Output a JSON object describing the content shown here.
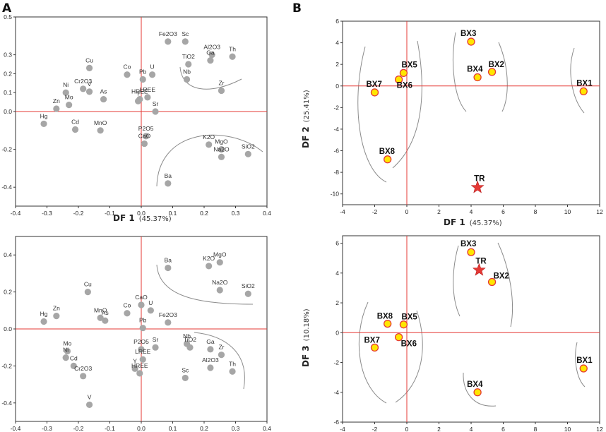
{
  "panels": {
    "A": "A",
    "B": "B"
  },
  "chart_data": [
    {
      "id": "A-top",
      "type": "scatter",
      "xlabel": "DF 1",
      "xlabel_pct": "(45.37%)",
      "ylabel": "",
      "xlim": [
        -0.4,
        0.4
      ],
      "ylim": [
        -0.5,
        0.5
      ],
      "xticks": [
        "-0.4",
        "-0.3",
        "-0.2",
        "-0.1",
        "0.0",
        "0.1",
        "0.2",
        "0.3",
        "0.4"
      ],
      "yticks": [
        "-0.4",
        "-0.2",
        "0.0",
        "0.1",
        "0.2",
        "0.3",
        "0.5"
      ],
      "xtick_values": [
        -0.4,
        -0.3,
        -0.2,
        -0.1,
        0.0,
        0.1,
        0.2,
        0.3,
        0.4
      ],
      "ytick_values": [
        -0.4,
        -0.2,
        0.0,
        0.1,
        0.2,
        0.3,
        0.5
      ],
      "points": [
        {
          "label": "Fe2O3",
          "x": 0.085,
          "y": 0.37
        },
        {
          "label": "Sc",
          "x": 0.14,
          "y": 0.37
        },
        {
          "label": "Al2O3",
          "x": 0.225,
          "y": 0.3
        },
        {
          "label": "Th",
          "x": 0.29,
          "y": 0.29
        },
        {
          "label": "TiO2",
          "x": 0.15,
          "y": 0.25
        },
        {
          "label": "Ga",
          "x": 0.22,
          "y": 0.27
        },
        {
          "label": "Nb",
          "x": 0.145,
          "y": 0.17
        },
        {
          "label": "Zr",
          "x": 0.255,
          "y": 0.11
        },
        {
          "label": "Cu",
          "x": -0.165,
          "y": 0.23
        },
        {
          "label": "Co",
          "x": -0.045,
          "y": 0.195
        },
        {
          "label": "Pb",
          "x": 0.005,
          "y": 0.17
        },
        {
          "label": "U",
          "x": 0.035,
          "y": 0.195
        },
        {
          "label": "Ni",
          "x": -0.24,
          "y": 0.1
        },
        {
          "label": "Cr2O3",
          "x": -0.185,
          "y": 0.12
        },
        {
          "label": "V",
          "x": -0.165,
          "y": 0.105
        },
        {
          "label": "As",
          "x": -0.12,
          "y": 0.065
        },
        {
          "label": "Mo",
          "x": -0.23,
          "y": 0.035
        },
        {
          "label": "Zn",
          "x": -0.27,
          "y": 0.015
        },
        {
          "label": "HREE",
          "x": -0.005,
          "y": 0.065
        },
        {
          "label": "Y",
          "x": -0.01,
          "y": 0.055
        },
        {
          "label": "LREE",
          "x": 0.02,
          "y": 0.075
        },
        {
          "label": "Sr",
          "x": 0.045,
          "y": 0.0
        },
        {
          "label": "Hg",
          "x": -0.31,
          "y": -0.065
        },
        {
          "label": "Cd",
          "x": -0.21,
          "y": -0.095
        },
        {
          "label": "MnO",
          "x": -0.13,
          "y": -0.1
        },
        {
          "label": "P2O5",
          "x": 0.015,
          "y": -0.13
        },
        {
          "label": "CaO",
          "x": 0.01,
          "y": -0.17
        },
        {
          "label": "K2O",
          "x": 0.215,
          "y": -0.175
        },
        {
          "label": "MgO",
          "x": 0.255,
          "y": -0.2
        },
        {
          "label": "Na2O",
          "x": 0.255,
          "y": -0.24
        },
        {
          "label": "SiO2",
          "x": 0.34,
          "y": -0.225
        },
        {
          "label": "Ba",
          "x": 0.085,
          "y": -0.38
        }
      ]
    },
    {
      "id": "A-bottom",
      "type": "scatter",
      "xlabel": "",
      "ylabel": "",
      "xlim": [
        -0.4,
        0.4
      ],
      "ylim": [
        -0.5,
        0.5
      ],
      "xticks": [
        "-0.4",
        "-0.3",
        "-0.2",
        "-0.1",
        "0.0",
        "0.1",
        "0.2",
        "0.3",
        "0.4"
      ],
      "yticks": [
        "-0.4",
        "-0.2",
        "0.0",
        "0.2",
        "0.4"
      ],
      "xtick_values": [
        -0.4,
        -0.3,
        -0.2,
        -0.1,
        0.0,
        0.1,
        0.2,
        0.3,
        0.4
      ],
      "ytick_values": [
        -0.4,
        -0.2,
        0.0,
        0.2,
        0.4
      ],
      "points": [
        {
          "label": "Ba",
          "x": 0.085,
          "y": 0.33
        },
        {
          "label": "K2O",
          "x": 0.215,
          "y": 0.34
        },
        {
          "label": "MgO",
          "x": 0.25,
          "y": 0.36
        },
        {
          "label": "Na2O",
          "x": 0.25,
          "y": 0.21
        },
        {
          "label": "SiO2",
          "x": 0.34,
          "y": 0.19
        },
        {
          "label": "Cu",
          "x": -0.17,
          "y": 0.2
        },
        {
          "label": "CaO",
          "x": 0.0,
          "y": 0.13
        },
        {
          "label": "U",
          "x": 0.03,
          "y": 0.1
        },
        {
          "label": "Co",
          "x": -0.045,
          "y": 0.085
        },
        {
          "label": "MnO",
          "x": -0.13,
          "y": 0.06
        },
        {
          "label": "As",
          "x": -0.115,
          "y": 0.045
        },
        {
          "label": "Fe2O3",
          "x": 0.085,
          "y": 0.035
        },
        {
          "label": "Pb",
          "x": 0.005,
          "y": 0.005
        },
        {
          "label": "Hg",
          "x": -0.31,
          "y": 0.04
        },
        {
          "label": "Zn",
          "x": -0.27,
          "y": 0.07
        },
        {
          "label": "P2O5",
          "x": 0.0,
          "y": -0.11
        },
        {
          "label": "Sr",
          "x": 0.045,
          "y": -0.1
        },
        {
          "label": "LREE",
          "x": 0.005,
          "y": -0.165
        },
        {
          "label": "Nb",
          "x": 0.145,
          "y": -0.08
        },
        {
          "label": "TiO2",
          "x": 0.155,
          "y": -0.1
        },
        {
          "label": "Ga",
          "x": 0.22,
          "y": -0.11
        },
        {
          "label": "Zr",
          "x": 0.255,
          "y": -0.14
        },
        {
          "label": "Al2O3",
          "x": 0.22,
          "y": -0.21
        },
        {
          "label": "Th",
          "x": 0.29,
          "y": -0.23
        },
        {
          "label": "Y",
          "x": -0.02,
          "y": -0.215
        },
        {
          "label": "HREE",
          "x": -0.005,
          "y": -0.24
        },
        {
          "label": "Sc",
          "x": 0.14,
          "y": -0.265
        },
        {
          "label": "Mo",
          "x": -0.235,
          "y": -0.12
        },
        {
          "label": "Ni",
          "x": -0.24,
          "y": -0.155
        },
        {
          "label": "Cd",
          "x": -0.215,
          "y": -0.2
        },
        {
          "label": "Cr2O3",
          "x": -0.185,
          "y": -0.255
        },
        {
          "label": "V",
          "x": -0.165,
          "y": -0.41
        }
      ]
    },
    {
      "id": "B-top",
      "type": "scatter",
      "xlabel": "DF 1",
      "xlabel_pct": "(45.37%)",
      "ylabel": "DF 2",
      "ylabel_pct": "(25.41%)",
      "xlim": [
        -4,
        12
      ],
      "ylim": [
        -11,
        6
      ],
      "xticks": [
        "-4",
        "-2",
        "0",
        "2",
        "4",
        "6",
        "8",
        "10",
        "12"
      ],
      "yticks": [
        "-10",
        "-8",
        "-6",
        "-4",
        "-2",
        "0",
        "2",
        "4",
        "6"
      ],
      "xtick_values": [
        -4,
        -2,
        0,
        2,
        4,
        6,
        8,
        10,
        12
      ],
      "ytick_values": [
        -10,
        -8,
        -6,
        -4,
        -2,
        0,
        2,
        4,
        6
      ],
      "points": [
        {
          "label": "BX1",
          "x": 11.0,
          "y": -0.5,
          "marker": "circle"
        },
        {
          "label": "BX2",
          "x": 5.3,
          "y": 1.3,
          "marker": "circle"
        },
        {
          "label": "BX3",
          "x": 4.0,
          "y": 4.1,
          "marker": "circle"
        },
        {
          "label": "BX4",
          "x": 4.4,
          "y": 0.8,
          "marker": "circle"
        },
        {
          "label": "BX5",
          "x": -0.2,
          "y": 1.2,
          "marker": "circle"
        },
        {
          "label": "BX6",
          "x": -0.5,
          "y": 0.6,
          "marker": "circle"
        },
        {
          "label": "BX7",
          "x": -2.0,
          "y": -0.6,
          "marker": "circle"
        },
        {
          "label": "BX8",
          "x": -1.2,
          "y": -6.8,
          "marker": "circle"
        },
        {
          "label": "TR",
          "x": 4.4,
          "y": -9.4,
          "marker": "star"
        }
      ]
    },
    {
      "id": "B-bottom",
      "type": "scatter",
      "xlabel": "",
      "ylabel": "DF 3",
      "ylabel_pct": "(10.18%)",
      "xlim": [
        -4,
        12
      ],
      "ylim": [
        -6,
        6.5
      ],
      "xticks": [
        "-4",
        "-2",
        "0",
        "2",
        "4",
        "6",
        "8",
        "10",
        "12"
      ],
      "yticks": [
        "-6",
        "-4",
        "-2",
        "0",
        "2",
        "4",
        "6"
      ],
      "xtick_values": [
        -4,
        -2,
        0,
        2,
        4,
        6,
        8,
        10,
        12
      ],
      "ytick_values": [
        -6,
        -4,
        -2,
        0,
        2,
        4,
        6
      ],
      "points": [
        {
          "label": "BX1",
          "x": 11.0,
          "y": -2.4,
          "marker": "circle"
        },
        {
          "label": "BX2",
          "x": 5.3,
          "y": 3.4,
          "marker": "circle"
        },
        {
          "label": "BX3",
          "x": 4.0,
          "y": 5.4,
          "marker": "circle"
        },
        {
          "label": "BX4",
          "x": 4.4,
          "y": -4.0,
          "marker": "circle"
        },
        {
          "label": "BX5",
          "x": -0.2,
          "y": 0.55,
          "marker": "circle"
        },
        {
          "label": "BX6",
          "x": -0.5,
          "y": -0.3,
          "marker": "circle"
        },
        {
          "label": "BX7",
          "x": -2.0,
          "y": -1.0,
          "marker": "circle"
        },
        {
          "label": "BX8",
          "x": -1.2,
          "y": 0.6,
          "marker": "circle"
        },
        {
          "label": "TR",
          "x": 4.5,
          "y": 4.2,
          "marker": "star"
        }
      ]
    }
  ],
  "colors": {
    "ref_line": "#e53935",
    "loading_point": "#a6a6a6",
    "sample_fill": "#ffe600",
    "sample_stroke": "#e53935",
    "star": "#e53935",
    "curve": "#8c8c8c"
  }
}
